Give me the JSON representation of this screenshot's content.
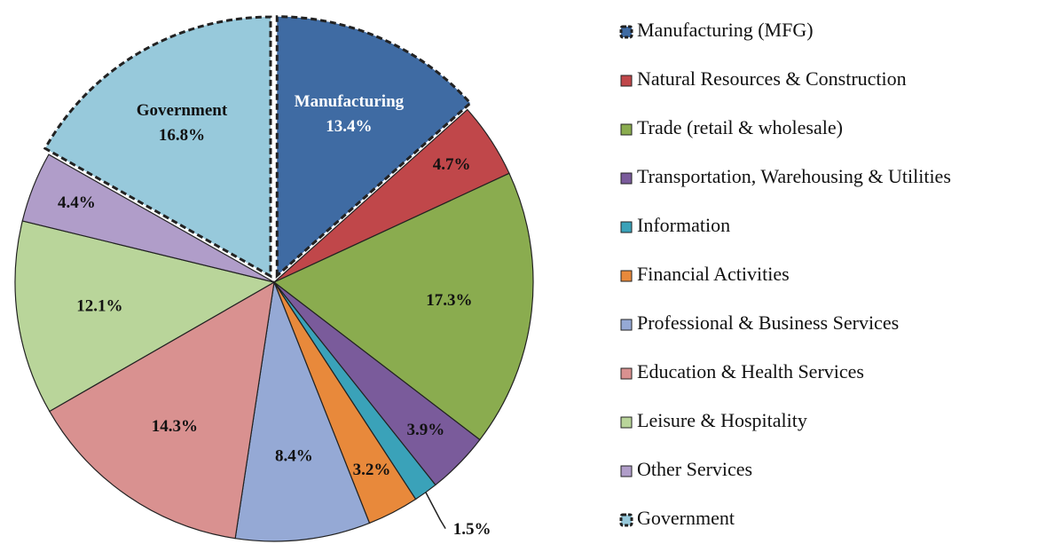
{
  "chart_data": {
    "type": "pie",
    "categories": [
      "Manufacturing (MFG)",
      "Natural Resources & Construction",
      "Trade (retail & wholesale)",
      "Transportation, Warehousing & Utilities",
      "Information",
      "Financial Activities",
      "Professional & Business Services",
      "Education & Health Services",
      "Leisure & Hospitality",
      "Other Services",
      "Government"
    ],
    "values": [
      13.4,
      4.7,
      17.3,
      3.9,
      1.5,
      3.2,
      8.4,
      14.3,
      12.1,
      4.4,
      16.8
    ],
    "value_labels": [
      "13.4%",
      "4.7%",
      "17.3%",
      "3.9%",
      "1.5%",
      "3.2%",
      "8.4%",
      "14.3%",
      "12.1%",
      "4.4%",
      "16.8%"
    ],
    "slice_names": [
      "Manufacturing",
      null,
      null,
      null,
      null,
      null,
      null,
      null,
      null,
      null,
      "Government"
    ],
    "colors": [
      "#3f6ba3",
      "#c0474a",
      "#8aac4f",
      "#7a5b9b",
      "#3aa2b9",
      "#e8893b",
      "#95a9d5",
      "#d99190",
      "#b9d59a",
      "#b09dc9",
      "#97c9db"
    ],
    "exploded": [
      0,
      10
    ],
    "legend": "right"
  }
}
